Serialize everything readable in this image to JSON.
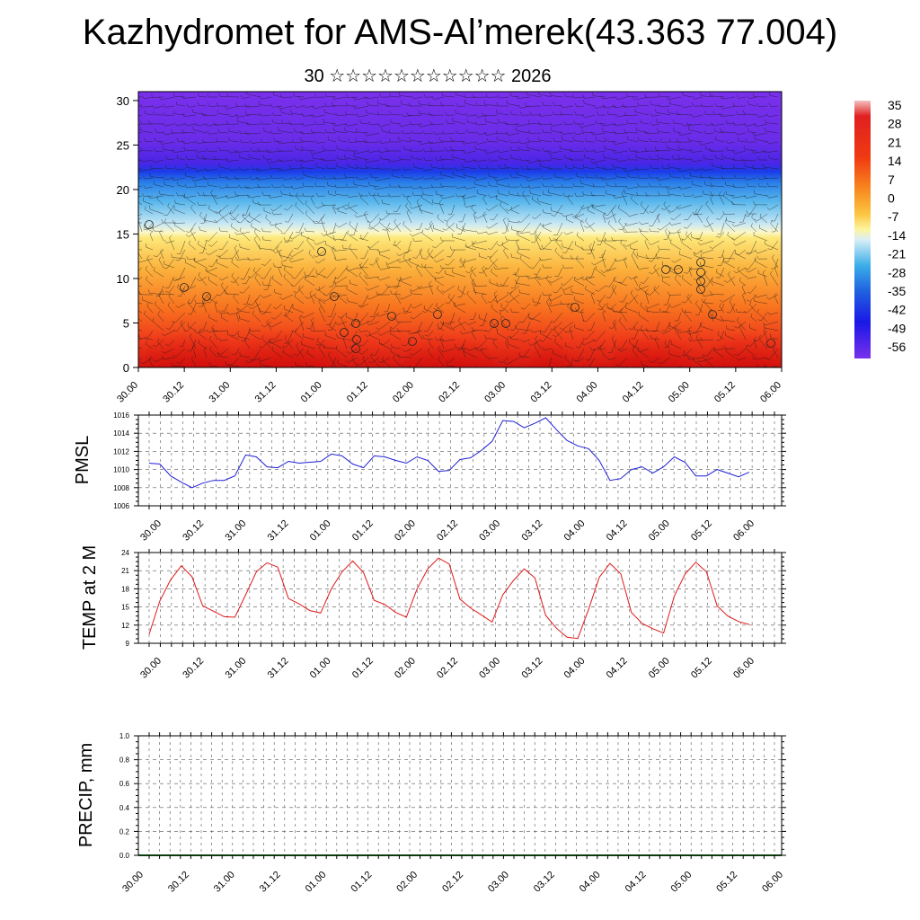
{
  "title": "Kazhydromet for AMS-Al’merek(43.363 77.004)",
  "subtitle": "30 ☆☆☆☆☆☆☆☆☆☆☆ 2026",
  "colors": {
    "pmsl_line": "#1f1fd6",
    "temp_line": "#e01818",
    "precip_baseline": "#1a7a1a"
  },
  "chart_data": [
    {
      "type": "heatmap",
      "name": "vertical-cross-section",
      "title": "",
      "ylabel": "",
      "ylim": [
        0,
        31
      ],
      "yticks": [
        0,
        5,
        10,
        15,
        20,
        25,
        30
      ],
      "xlabels": [
        "30.00",
        "30.12",
        "31.00",
        "31.12",
        "01.00",
        "01.12",
        "02.00",
        "02.12",
        "03.00",
        "03.12",
        "04.00",
        "04.12",
        "05.00",
        "05.12",
        "06.00"
      ],
      "colorbar_labels": [
        "35",
        "28",
        "21",
        "14",
        "7",
        "0",
        "-7",
        "-14",
        "-21",
        "-28",
        "-35",
        "-42",
        "-49",
        "-56"
      ],
      "colorbar_values": [
        35,
        28,
        21,
        14,
        7,
        0,
        -7,
        -14,
        -21,
        -28,
        -35,
        -42,
        -49,
        -56
      ]
    },
    {
      "type": "line",
      "name": "pmsl",
      "ylabel": "PMSL",
      "ylim": [
        1006,
        1016
      ],
      "yticks": [
        1006,
        1008,
        1010,
        1012,
        1014,
        1016
      ],
      "xlabels": [
        "30.00",
        "30.12",
        "31.00",
        "31.12",
        "01.00",
        "01.12",
        "02.00",
        "02.12",
        "03.00",
        "03.12",
        "04.00",
        "04.12",
        "05.00",
        "05.12",
        "06.00"
      ],
      "values": [
        1010.7,
        1010.6,
        1009.3,
        1008.6,
        1008.0,
        1008.5,
        1008.8,
        1008.8,
        1009.3,
        1011.6,
        1011.4,
        1010.3,
        1010.2,
        1010.9,
        1010.7,
        1010.8,
        1010.9,
        1011.7,
        1011.5,
        1010.6,
        1010.2,
        1011.5,
        1011.4,
        1011.0,
        1010.7,
        1011.4,
        1011.0,
        1009.8,
        1009.9,
        1011.1,
        1011.3,
        1012.1,
        1013.1,
        1015.4,
        1015.3,
        1014.6,
        1015.1,
        1015.7,
        1014.4,
        1013.2,
        1012.6,
        1012.3,
        1011.0,
        1008.8,
        1009.0,
        1010.0,
        1010.3,
        1009.6,
        1010.3,
        1011.4,
        1010.8,
        1009.3,
        1009.3,
        1010.0,
        1009.6,
        1009.2,
        1009.7
      ]
    },
    {
      "type": "line",
      "name": "temp",
      "ylabel": "TEMP at 2 M",
      "ylim": [
        9,
        24
      ],
      "yticks": [
        9,
        12,
        15,
        18,
        21,
        24
      ],
      "xlabels": [
        "30.00",
        "30.12",
        "31.00",
        "31.12",
        "01.00",
        "01.12",
        "02.00",
        "02.12",
        "03.00",
        "03.12",
        "04.00",
        "04.12",
        "05.00",
        "05.12",
        "06.00"
      ],
      "values": [
        10.5,
        16.0,
        19.5,
        21.8,
        20.0,
        15.2,
        14.3,
        13.4,
        13.3,
        17.0,
        20.8,
        22.3,
        21.6,
        16.4,
        15.5,
        14.4,
        14.0,
        18.0,
        20.8,
        22.6,
        20.7,
        16.1,
        15.4,
        14.1,
        13.3,
        18.0,
        21.3,
        23.1,
        22.1,
        16.3,
        14.8,
        13.7,
        12.5,
        17.0,
        19.4,
        21.3,
        19.8,
        13.6,
        11.5,
        10.0,
        9.8,
        14.6,
        19.9,
        22.2,
        20.5,
        14.1,
        12.3,
        11.4,
        10.7,
        16.8,
        20.4,
        22.4,
        20.8,
        15.2,
        13.5,
        12.6,
        12.1
      ]
    },
    {
      "type": "line",
      "name": "precip",
      "ylabel": "PRECIP, mm",
      "ylim": [
        0,
        1
      ],
      "yticks": [
        "0.0",
        "0.2",
        "0.4",
        "0.6",
        "0.8",
        "1.0"
      ],
      "xlabels": [
        "30.00",
        "30.12",
        "31.00",
        "31.12",
        "01.00",
        "01.12",
        "02.00",
        "02.12",
        "03.00",
        "03.12",
        "04.00",
        "04.12",
        "05.00",
        "05.12",
        "06.00"
      ],
      "values": [
        0,
        0,
        0,
        0,
        0,
        0,
        0,
        0,
        0,
        0,
        0,
        0,
        0,
        0,
        0,
        0,
        0,
        0,
        0,
        0,
        0,
        0,
        0,
        0,
        0,
        0,
        0,
        0,
        0,
        0,
        0,
        0,
        0,
        0,
        0,
        0,
        0,
        0,
        0,
        0,
        0,
        0,
        0,
        0,
        0,
        0,
        0,
        0,
        0,
        0,
        0,
        0,
        0,
        0,
        0,
        0,
        0,
        0,
        0,
        0,
        0
      ]
    }
  ]
}
